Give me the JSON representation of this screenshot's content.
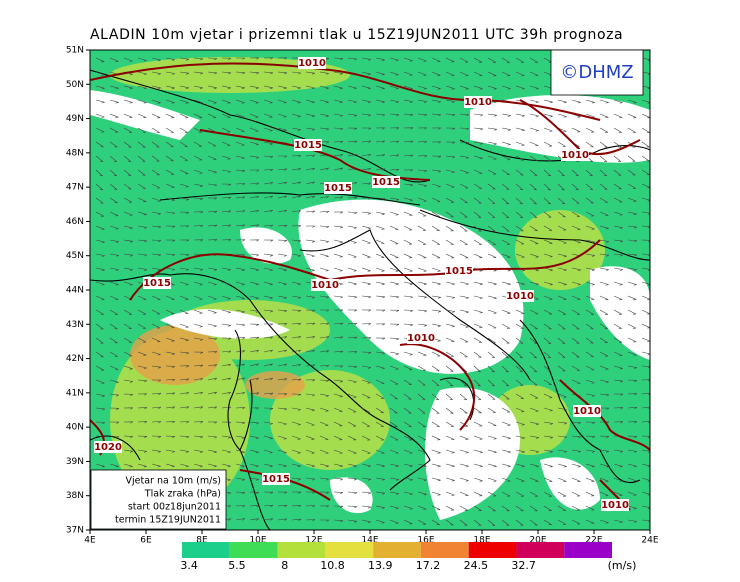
{
  "title": "ALADIN 10m vjetar i prizemni tlak u 15Z19JUN2011 UTC 39h prognoza",
  "copyright": "©DHMZ",
  "lat_labels": [
    "51N",
    "50N",
    "49N",
    "48N",
    "47N",
    "46N",
    "45N",
    "44N",
    "43N",
    "42N",
    "41N",
    "40N",
    "39N",
    "38N",
    "37N"
  ],
  "lon_labels": [
    "4E",
    "6E",
    "8E",
    "10E",
    "12E",
    "14E",
    "16E",
    "18E",
    "20E",
    "22E",
    "24E"
  ],
  "info": [
    "Vjetar na 10m (m/s)",
    "Tlak zraka (hPa)",
    "start 00z18jun2011",
    "termin 15Z19JUN2011"
  ],
  "isobars": [
    "1010",
    "1010",
    "1010",
    "1010",
    "1010",
    "1010",
    "1010",
    "1010",
    "1015",
    "1015",
    "1015",
    "1015",
    "1015",
    "1015",
    "1020"
  ],
  "legend": {
    "values": [
      3.4,
      5.5,
      8,
      10.8,
      13.9,
      17.2,
      24.5,
      32.7
    ],
    "unit": "(m/s)",
    "colors": [
      "#1ccf8a",
      "#3fdc55",
      "#b4e03c",
      "#e4e040",
      "#e4b032",
      "#f08432",
      "#ee0000",
      "#d0005a",
      "#9a00c8"
    ]
  }
}
